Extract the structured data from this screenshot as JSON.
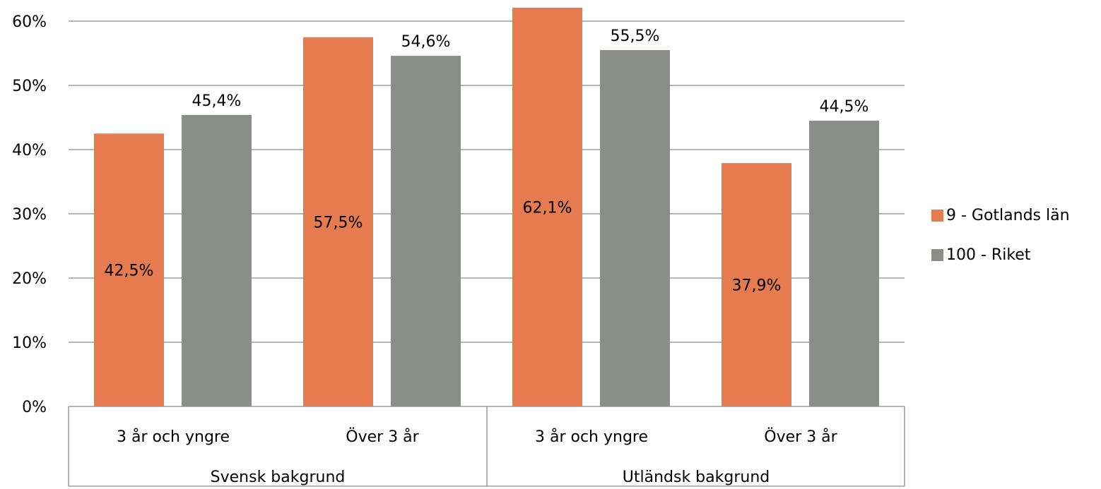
{
  "chart_data": {
    "type": "bar",
    "title": "",
    "ylim": [
      0,
      60
    ],
    "ytick_step": 10,
    "y_tick_format": "{v}%",
    "grid": true,
    "legend_position": "right",
    "groups": [
      {
        "label": "Svensk bakgrund",
        "categories": [
          "3 år och yngre",
          "Över 3 år"
        ]
      },
      {
        "label": "Utländsk bakgrund",
        "categories": [
          "3 år och yngre",
          "Över 3 år"
        ]
      }
    ],
    "series": [
      {
        "name": "9 - Gotlands län",
        "color": "#E57B4E",
        "values": [
          42.5,
          57.5,
          62.1,
          37.9
        ],
        "labels": [
          "42,5%",
          "57,5%",
          "62,1%",
          "37,9%"
        ],
        "label_position": "inside"
      },
      {
        "name": "100 - Riket",
        "color": "#8A8D8A",
        "values": [
          45.4,
          54.6,
          55.5,
          44.5
        ],
        "labels": [
          "45,4%",
          "54,6%",
          "55,5%",
          "44,5%"
        ],
        "label_position": "above"
      }
    ]
  }
}
